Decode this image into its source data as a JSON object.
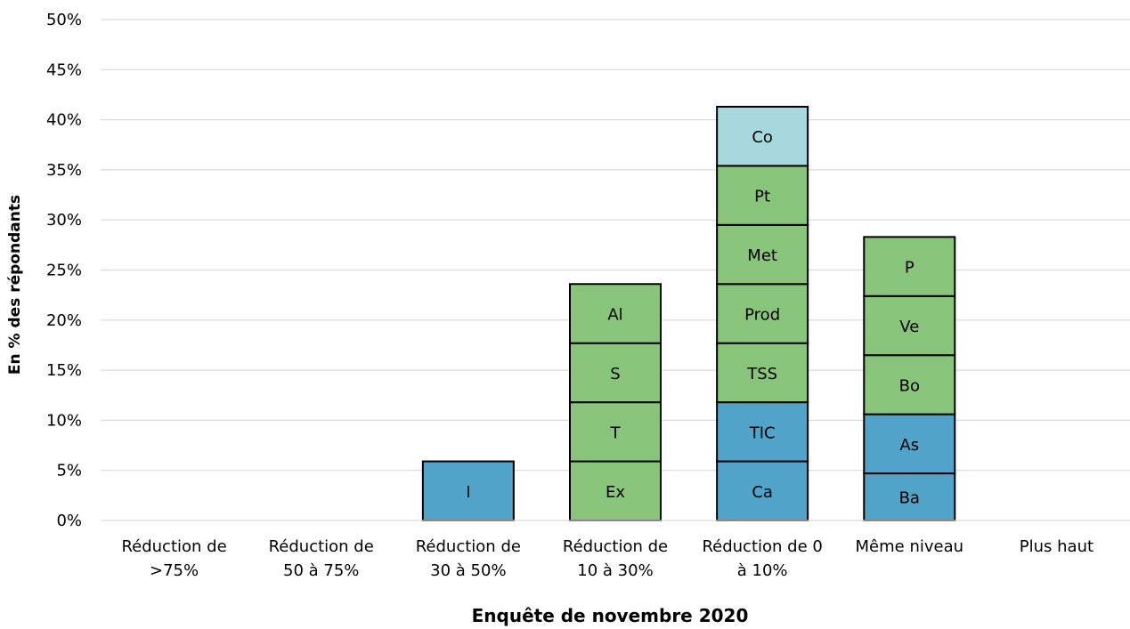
{
  "chart_data": {
    "type": "bar",
    "stacked": true,
    "xlabel": "Enquête de novembre 2020",
    "ylabel": "En % des répondants",
    "ylim": [
      0,
      50
    ],
    "ytick_step": 5,
    "ytick_suffix": "%",
    "grid": true,
    "colors": {
      "blue": "#52a3c9",
      "green": "#88c57b",
      "light-blue": "#a6d8de"
    },
    "categories": [
      {
        "lines": [
          "Réduction de",
          ">75%"
        ],
        "segments": []
      },
      {
        "lines": [
          "Réduction de",
          "50 à 75%"
        ],
        "segments": []
      },
      {
        "lines": [
          "Réduction de",
          "30 à 50%"
        ],
        "segments": [
          {
            "label": "I",
            "value": 5.9,
            "color": "blue"
          }
        ]
      },
      {
        "lines": [
          "Réduction de",
          "10 à 30%"
        ],
        "segments": [
          {
            "label": "Ex",
            "value": 5.9,
            "color": "green"
          },
          {
            "label": "T",
            "value": 5.9,
            "color": "green"
          },
          {
            "label": "S",
            "value": 5.9,
            "color": "green"
          },
          {
            "label": "Al",
            "value": 5.9,
            "color": "green"
          }
        ]
      },
      {
        "lines": [
          "Réduction de 0",
          "à 10%"
        ],
        "segments": [
          {
            "label": "Ca",
            "value": 5.9,
            "color": "blue"
          },
          {
            "label": "TIC",
            "value": 5.9,
            "color": "blue"
          },
          {
            "label": "TSS",
            "value": 5.9,
            "color": "green"
          },
          {
            "label": "Prod",
            "value": 5.9,
            "color": "green"
          },
          {
            "label": "Met",
            "value": 5.9,
            "color": "green"
          },
          {
            "label": "Pt",
            "value": 5.9,
            "color": "green"
          },
          {
            "label": "Co",
            "value": 5.9,
            "color": "light-blue"
          }
        ]
      },
      {
        "lines": [
          "Même niveau"
        ],
        "segments": [
          {
            "label": "Ba",
            "value": 4.7,
            "color": "blue"
          },
          {
            "label": "As",
            "value": 5.9,
            "color": "blue"
          },
          {
            "label": "Bo",
            "value": 5.9,
            "color": "green"
          },
          {
            "label": "Ve",
            "value": 5.9,
            "color": "green"
          },
          {
            "label": "P",
            "value": 5.9,
            "color": "green"
          }
        ]
      },
      {
        "lines": [
          "Plus haut"
        ],
        "segments": []
      }
    ]
  }
}
